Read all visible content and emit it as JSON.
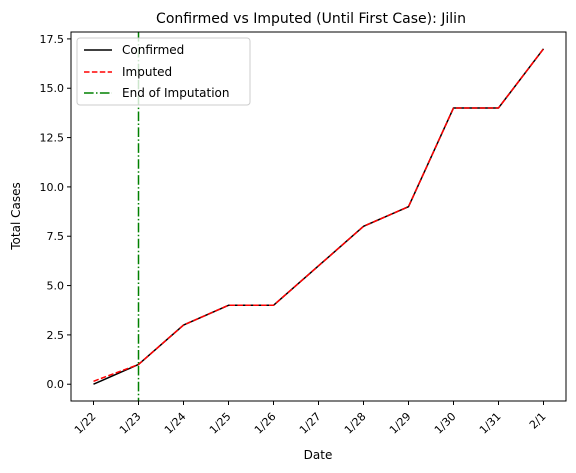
{
  "chart_data": {
    "type": "line",
    "title": "Confirmed vs Imputed (Until First Case): Jilin",
    "xlabel": "Date",
    "ylabel": "Total Cases",
    "categories": [
      "1/22",
      "1/23",
      "1/24",
      "1/25",
      "1/26",
      "1/27",
      "1/28",
      "1/29",
      "1/30",
      "1/31",
      "2/1"
    ],
    "series": [
      {
        "name": "Confirmed",
        "color": "#000000",
        "style": "solid",
        "values": [
          0,
          1,
          3,
          4,
          4,
          6,
          8,
          9,
          14,
          14,
          17
        ]
      },
      {
        "name": "Imputed",
        "color": "#ff0000",
        "style": "dashed",
        "values": [
          0.15,
          1,
          3,
          4,
          4,
          6,
          8,
          9,
          14,
          14,
          17
        ]
      }
    ],
    "vline": {
      "name": "End of Imputation",
      "color": "#008000",
      "style": "dashdot",
      "x": "1/23"
    },
    "yticks": [
      "0.0",
      "2.5",
      "5.0",
      "7.5",
      "10.0",
      "12.5",
      "15.0",
      "17.5"
    ],
    "ylim": [
      -0.85,
      17.85
    ],
    "legend": "top-left",
    "grid": false
  }
}
